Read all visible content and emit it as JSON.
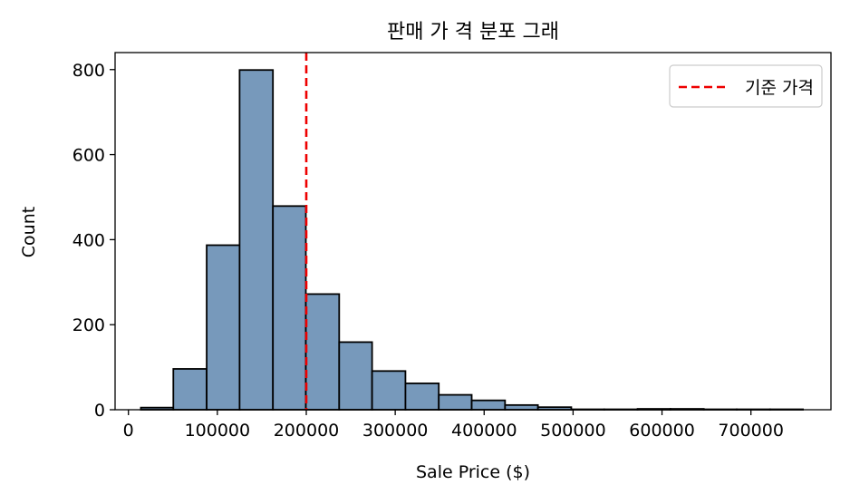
{
  "chart_data": {
    "type": "bar",
    "title": "판매 가 격 분포 그래",
    "xlabel": "Sale Price ($)",
    "ylabel": "Count",
    "xlim": [
      -15000,
      790000
    ],
    "ylim": [
      0,
      840
    ],
    "x_ticks": [
      0,
      100000,
      200000,
      300000,
      400000,
      500000,
      600000,
      700000
    ],
    "x_tick_labels": [
      "0",
      "100000",
      "200000",
      "300000",
      "400000",
      "500000",
      "600000",
      "700000"
    ],
    "y_ticks": [
      0,
      200,
      400,
      600,
      800
    ],
    "y_tick_labels": [
      "0",
      "200",
      "400",
      "600",
      "800"
    ],
    "grid": false,
    "bar_color": "#7799bb",
    "bar_edge_color": "#000000",
    "bins": [
      {
        "x0": 14000,
        "x1": 50500,
        "count": 5
      },
      {
        "x0": 50500,
        "x1": 88000,
        "count": 96
      },
      {
        "x0": 88000,
        "x1": 125000,
        "count": 387
      },
      {
        "x0": 125000,
        "x1": 162500,
        "count": 799
      },
      {
        "x0": 162500,
        "x1": 199500,
        "count": 479
      },
      {
        "x0": 199500,
        "x1": 237000,
        "count": 272
      },
      {
        "x0": 237000,
        "x1": 274000,
        "count": 159
      },
      {
        "x0": 274000,
        "x1": 311500,
        "count": 91
      },
      {
        "x0": 311500,
        "x1": 349000,
        "count": 62
      },
      {
        "x0": 349000,
        "x1": 386000,
        "count": 35
      },
      {
        "x0": 386000,
        "x1": 423500,
        "count": 22
      },
      {
        "x0": 423500,
        "x1": 460500,
        "count": 11
      },
      {
        "x0": 460500,
        "x1": 498000,
        "count": 6
      },
      {
        "x0": 498000,
        "x1": 535000,
        "count": 1
      },
      {
        "x0": 535000,
        "x1": 572500,
        "count": 1
      },
      {
        "x0": 572500,
        "x1": 609500,
        "count": 2
      },
      {
        "x0": 609500,
        "x1": 647000,
        "count": 2
      },
      {
        "x0": 647000,
        "x1": 684000,
        "count": 1
      },
      {
        "x0": 684000,
        "x1": 721500,
        "count": 1
      },
      {
        "x0": 721500,
        "x1": 758500,
        "count": 1
      }
    ],
    "reference_line": {
      "x": 200000,
      "color": "#ee0000",
      "style": "dashed",
      "label": "기준 가격"
    },
    "legend": {
      "position": "top-right",
      "entries": [
        "기준 가격"
      ]
    }
  }
}
